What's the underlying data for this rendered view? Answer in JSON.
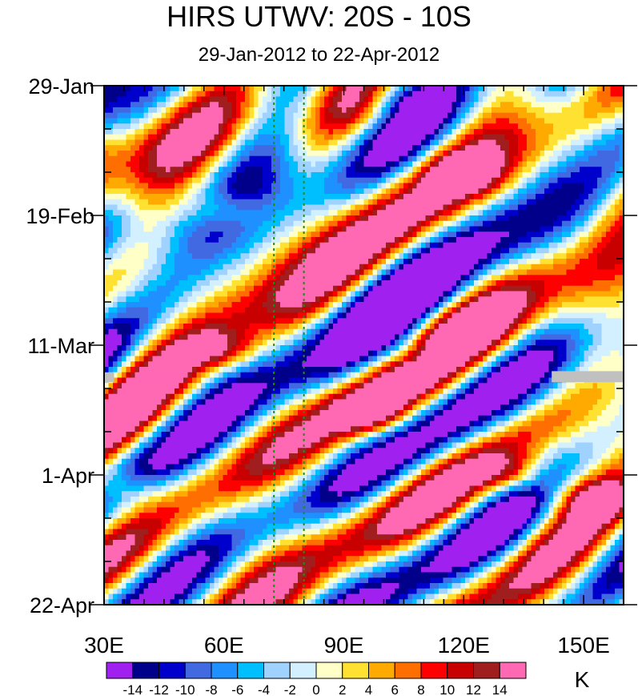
{
  "chart_data": {
    "type": "heatmap",
    "title": "HIRS UTWV: 20S - 10S",
    "subtitle": "29-Jan-2012 to 22-Apr-2012",
    "xlabel": "",
    "ylabel": "",
    "x_range": [
      30,
      160
    ],
    "x_ticks": [
      {
        "value": 30,
        "label": "30E"
      },
      {
        "value": 60,
        "label": "60E"
      },
      {
        "value": 90,
        "label": "90E"
      },
      {
        "value": 120,
        "label": "120E"
      },
      {
        "value": 150,
        "label": "150E"
      }
    ],
    "y_range_days": [
      0,
      84
    ],
    "y_ticks": [
      {
        "day": 0,
        "label": "29-Jan"
      },
      {
        "day": 21,
        "label": "19-Feb"
      },
      {
        "day": 42,
        "label": "11-Mar"
      },
      {
        "day": 63,
        "label": "1-Apr"
      },
      {
        "day": 84,
        "label": "22-Apr"
      }
    ],
    "reference_lines_lon": [
      72.5,
      80
    ],
    "colorbar": {
      "unit": "K",
      "levels": [
        "-14",
        "-12",
        "-10",
        "-8",
        "-6",
        "-4",
        "-2",
        "0",
        "2",
        "4",
        "6",
        "8",
        "10",
        "12",
        "14"
      ],
      "colors": [
        "#a020f0",
        "#00008b",
        "#0000cd",
        "#4169e1",
        "#1e90ff",
        "#00bfff",
        "#a0d2ff",
        "#d2f0ff",
        "#ffffc8",
        "#ffe132",
        "#ffaa00",
        "#ff6e00",
        "#ff0000",
        "#c80000",
        "#a01e1e",
        "#ff69b4"
      ]
    },
    "features": [
      {
        "lon": 60,
        "day": 20,
        "value": 10
      },
      {
        "lon": 120,
        "day": 14,
        "value": 14
      },
      {
        "lon": 60,
        "day": 43,
        "value": 10
      },
      {
        "lon": 110,
        "day": 44,
        "value": -14
      },
      {
        "lon": 97,
        "day": 53,
        "value": 14
      },
      {
        "lon": 133,
        "day": 63,
        "value": 12
      },
      {
        "lon": 152,
        "day": 67,
        "value": 14
      },
      {
        "lon": 102,
        "day": 1,
        "value": -12
      },
      {
        "lon": 33,
        "day": 65,
        "value": 10
      }
    ]
  }
}
